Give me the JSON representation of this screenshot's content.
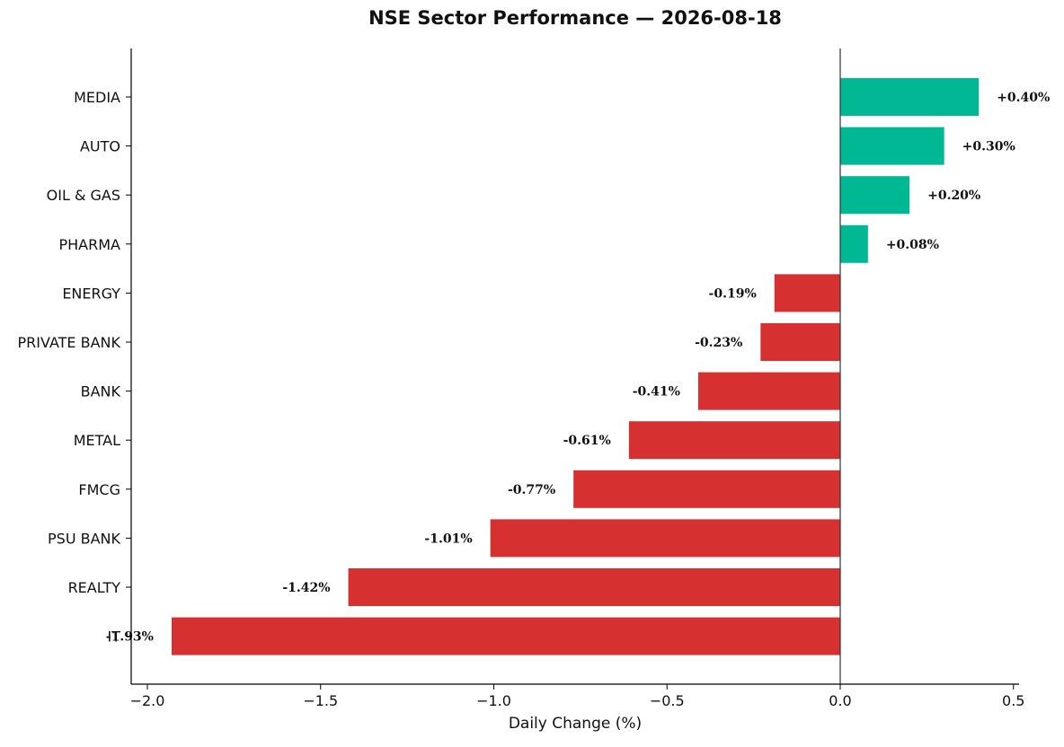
{
  "chart_data": {
    "type": "bar",
    "orientation": "horizontal",
    "title": "NSE Sector Performance — 2026-08-18",
    "xlabel": "Daily Change (%)",
    "ylabel": "",
    "xlim": [
      -2.05,
      0.52
    ],
    "xticks": [
      -2.0,
      -1.5,
      -1.0,
      -0.5,
      0.0,
      0.5
    ],
    "xtick_labels": [
      "−2.0",
      "−1.5",
      "−1.0",
      "−0.5",
      "0.0",
      "0.5"
    ],
    "grid": false,
    "legend": "none",
    "categories": [
      "MEDIA",
      "AUTO",
      "OIL & GAS",
      "PHARMA",
      "ENERGY",
      "PRIVATE BANK",
      "BANK",
      "METAL",
      "FMCG",
      "PSU BANK",
      "REALTY",
      "IT"
    ],
    "values": [
      0.4,
      0.3,
      0.2,
      0.08,
      -0.19,
      -0.23,
      -0.41,
      -0.61,
      -0.77,
      -1.01,
      -1.42,
      -1.93
    ],
    "value_labels": [
      "+0.40%",
      "+0.30%",
      "+0.20%",
      "+0.08%",
      "-0.19%",
      "-0.23%",
      "-0.41%",
      "-0.61%",
      "-0.77%",
      "-1.01%",
      "-1.42%",
      "-1.93%"
    ],
    "colors": {
      "positive": "#00b894",
      "negative": "#d63031",
      "zero_line": "#333333",
      "axis": "#000000"
    }
  }
}
